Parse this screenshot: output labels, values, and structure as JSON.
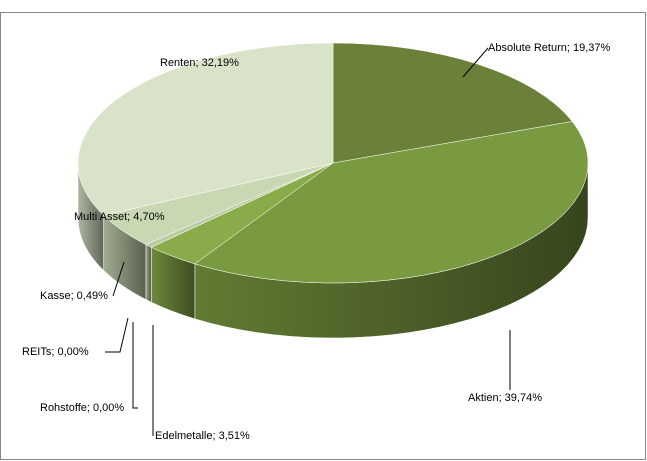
{
  "chart_data": {
    "type": "pie3d",
    "value_labels": [
      "Absolute Return; 19,37%",
      "Aktien; 39,74%",
      "Edelmetalle; 3,51%",
      "Rohstoffe; 0,00%",
      "REITs; 0,00%",
      "Kasse; 0,49%",
      "Multi Asset; 4,70%",
      "Renten; 32,19%"
    ],
    "values": [
      19.37,
      39.74,
      3.51,
      0,
      0,
      0.49,
      4.7,
      32.19
    ],
    "colors": [
      "#6b8038",
      "#7a9a40",
      "#8aab4a",
      "#7f9a4a",
      "#a9bb86",
      "#b9c9a2",
      "#c9d7b3",
      "#d9e3c9"
    ]
  }
}
